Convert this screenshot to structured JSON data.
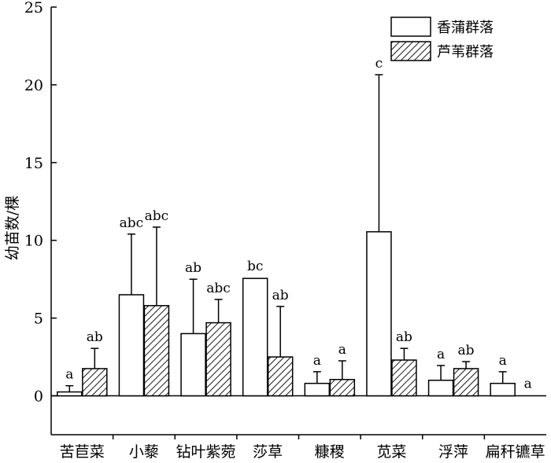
{
  "chart_data": {
    "type": "bar",
    "ylabel": "幼苗数/棵",
    "xlabel": "",
    "ylim": [
      -2.5,
      25
    ],
    "yticks": [
      0,
      5,
      10,
      15,
      20,
      25
    ],
    "grid": false,
    "legend_position": "top-right",
    "categories": [
      "苦苣菜",
      "小藜",
      "钻叶紫菀",
      "莎草",
      "糠稷",
      "苋菜",
      "浮萍",
      "扁秆镳草"
    ],
    "series": [
      {
        "name": "香蒲群落",
        "fill": "open",
        "values": [
          0.25,
          6.5,
          4.0,
          7.55,
          0.8,
          10.55,
          1.0,
          0.8
        ],
        "error": [
          0.4,
          3.9,
          3.5,
          null,
          0.75,
          10.1,
          0.95,
          0.75
        ],
        "labels": [
          "a",
          "abc",
          "ab",
          "bc",
          "a",
          "c",
          "a",
          "a"
        ]
      },
      {
        "name": "芦苇群落",
        "fill": "hatched",
        "values": [
          1.75,
          5.8,
          4.7,
          2.5,
          1.05,
          2.3,
          1.75,
          0
        ],
        "error": [
          1.3,
          5.05,
          1.5,
          3.25,
          1.2,
          0.75,
          0.45,
          null
        ],
        "labels": [
          "ab",
          "abc",
          "abc",
          "ab",
          "a",
          "ab",
          "ab",
          "a"
        ]
      }
    ]
  }
}
